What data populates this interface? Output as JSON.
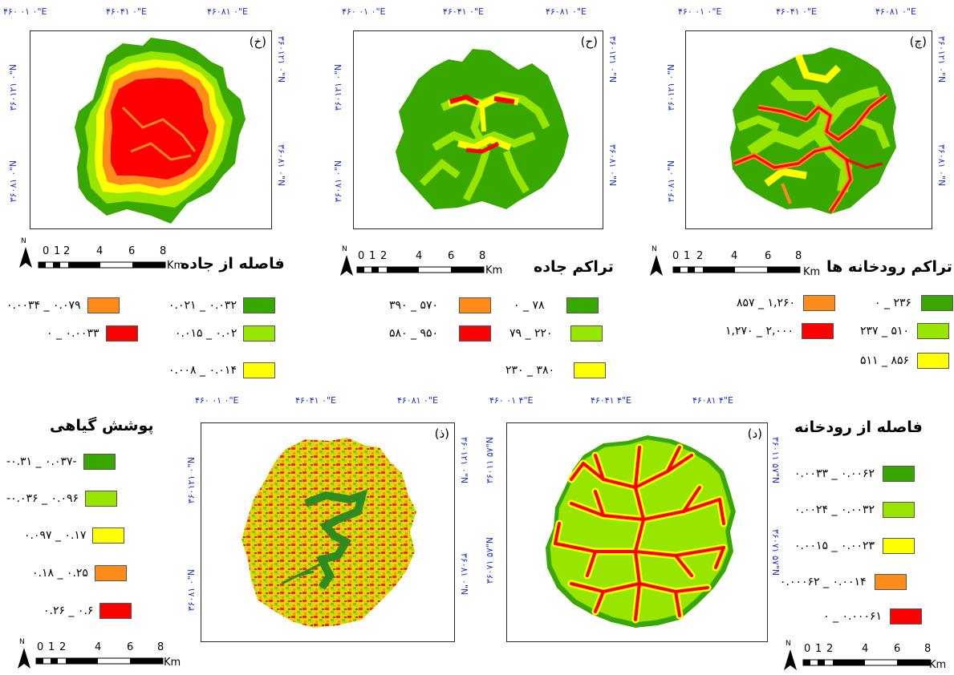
{
  "colors": {
    "class1": "#38a800",
    "class2": "#98e600",
    "class3": "#ffff00",
    "class4": "#ff8c1a",
    "class5": "#ff0000",
    "coord_text": "#1d2bd6"
  },
  "coords_top": {
    "a": "۴۶۰ ۰۱ ۰\"E",
    "b": "۴۶۰۴۱ ۰\"E",
    "c": "۴۶۰۸۱ ۰\"E"
  },
  "coords_bottom_d": {
    "a": "۴۶۰ ۰۱ ۴\"E",
    "b": "۴۶۰۴۱ ۴\"E",
    "c": "۴۶۰۸۱ ۴\"E"
  },
  "coords_side": {
    "n1": "۳۶۰۱۲۱ ۰\"N",
    "n2": "۳۶۰۸۱ ۰\"N",
    "n3": "۳۶۰۱۱ ۵۷\"N",
    "n4": "۳۶۰۷۱ ۵۷\"N"
  },
  "panels": {
    "kh": {
      "label": "(خ)",
      "title": "فاصله از جاده"
    },
    "h": {
      "label": "(ح)",
      "title": "تراکم جاده"
    },
    "ch": {
      "label": "(چ)",
      "title": "تراکم رودخانه ها"
    },
    "z": {
      "label": "(ذ)",
      "title": "پوشش گیاهی"
    },
    "d": {
      "label": "(د)",
      "title": "فاصله از رودخانه"
    }
  },
  "scalebar": {
    "north": "N",
    "n0": "0",
    "n1": "1",
    "n2": "2",
    "n4": "4",
    "n6": "6",
    "n8": "8",
    "unit": "Km"
  },
  "legends": {
    "kh": [
      "۰.۰۳۲ _ ۰.۰۲۱",
      "۰.۰۲ _ ۰.۰۱۵",
      "۰.۰۱۴ _ ۰.۰۰۸",
      "۰.۰۷۹ _ ۰.۰۰۳۴",
      "۰.۰۰۳۳ _ ۰"
    ],
    "h": [
      "۷۸ _ ۰",
      "۲۲۰ _ ۷۹",
      "۳۸۰ _ ۲۳۰",
      "۵۷۰ _ ۳۹۰",
      "۹۵۰ _ ۵۸۰"
    ],
    "ch": [
      "۲۳۶ _ ۰",
      "۵۱۰ _ ۲۳۷",
      "۸۵۶ _ ۵۱۱",
      "۱,۲۶۰ _ ۸۵۷",
      "۲,۰۰۰ _ ۱,۲۷۰"
    ],
    "z": [
      "-۰.۰۳۷ _ ۰.۳۱-",
      "۰.۰۹۶ _ ۰.۰۳۶-",
      "۰.۱۷ _ ۰.۰۹۷",
      "۰.۲۵ _ ۰.۱۸",
      "۰.۶ _ ۰.۲۶"
    ],
    "d": [
      "۰.۰۰۶۲ _ ۰.۰۰۳۳",
      "۰.۰۰۳۲ _ ۰.۰۰۲۴",
      "۰.۰۰۲۳ _ ۰.۰۰۱۵",
      "۰.۰۰۱۴ _ ۰.۰۰۰۶۲",
      "۰.۰۰۰۶۱ _ ۰"
    ]
  }
}
